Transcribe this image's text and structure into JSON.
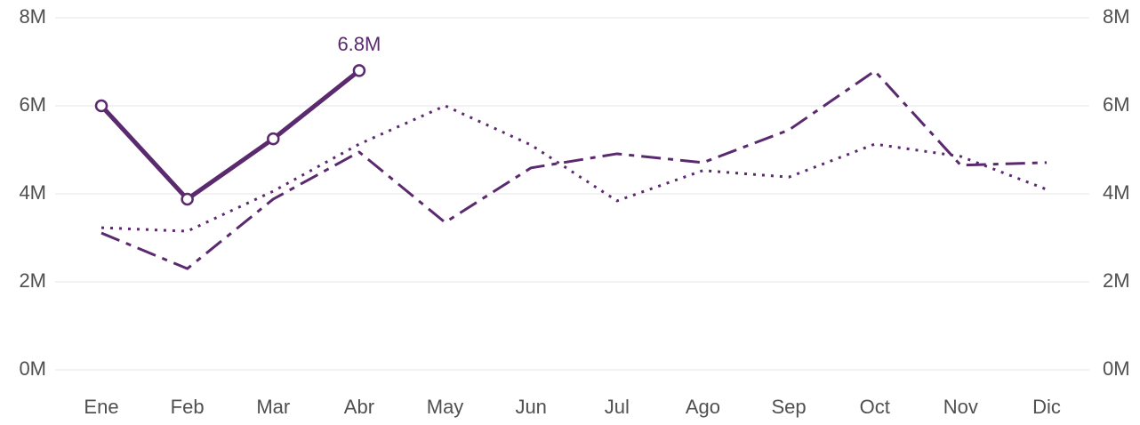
{
  "chart_data": {
    "type": "line",
    "categories": [
      "Ene",
      "Feb",
      "Mar",
      "Abr",
      "May",
      "Jun",
      "Jul",
      "Ago",
      "Sep",
      "Oct",
      "Nov",
      "Dic"
    ],
    "series": [
      {
        "color": "#5b2a6e",
        "style": "solid",
        "markers": true,
        "values": [
          6.0,
          3.88,
          5.25,
          6.8,
          null,
          null,
          null,
          null,
          null,
          null,
          null,
          null
        ],
        "value_labels": [
          null,
          null,
          null,
          "6.8M",
          null,
          null,
          null,
          null,
          null,
          null,
          null,
          null
        ]
      },
      {
        "color": "#5b2a6e",
        "style": "dashed",
        "values": [
          3.11,
          2.3,
          3.88,
          4.95,
          3.35,
          4.59,
          4.91,
          4.71,
          5.45,
          6.79,
          4.65,
          4.71
        ]
      },
      {
        "color": "#5b2a6e",
        "style": "dotted",
        "values": [
          3.23,
          3.15,
          4.06,
          5.13,
          6.0,
          5.11,
          3.84,
          4.53,
          4.38,
          5.13,
          4.85,
          4.1
        ]
      }
    ],
    "ylim": [
      0,
      8
    ],
    "yticks": [
      {
        "value": 0,
        "label": "0M"
      },
      {
        "value": 2,
        "label": "2M"
      },
      {
        "value": 4,
        "label": "4M"
      },
      {
        "value": 6,
        "label": "6M"
      },
      {
        "value": 8,
        "label": "8M"
      }
    ],
    "grid": true
  }
}
